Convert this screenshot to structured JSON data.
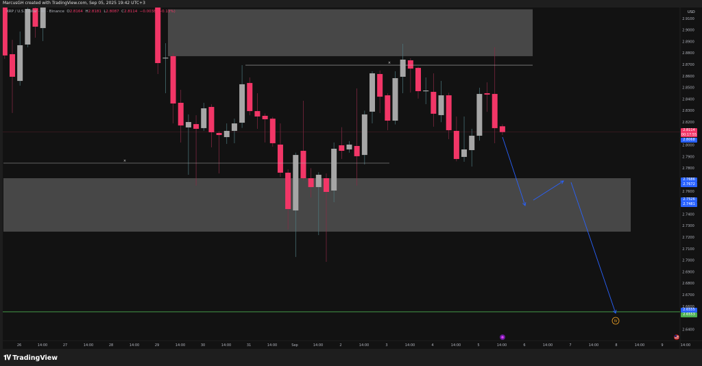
{
  "header": {
    "credit": "MarcusGH created with TradingView.com, Sep 05, 2025 19:42 UTC+3"
  },
  "legend": {
    "symbol": "XRP / U.S. Dollar · 4h · Binance",
    "o_label": "O",
    "o": "2.8164",
    "h_label": "H",
    "h": "2.8181",
    "l_label": "L",
    "l": "2.8087",
    "c_label": "C",
    "c": "2.8114",
    "change": "−0.0038 (−0.13%)"
  },
  "footer": {
    "brand": "TradingView"
  },
  "colors": {
    "up": "#a6a6a6",
    "down": "#f23667",
    "zone": "#474747",
    "green_line": "#4caf50",
    "arrow": "#2962ff",
    "background": "#121212"
  },
  "price_labels": {
    "currency": "USD",
    "last": "2.8114",
    "countdown": "00:17:55",
    "last_color": "#f23667",
    "prev": "2.8068",
    "arrow1_a": "2.7686",
    "arrow1_b": "2.7672",
    "arrow2_a": "2.7526",
    "arrow2_b": "2.7481",
    "target": "2.6555",
    "green_line": "2.6553"
  },
  "icons": {
    "wave_label": "IV",
    "events": "events-icon",
    "flag": "us-flag-icon"
  },
  "chart_data": {
    "type": "candlestick",
    "title": "XRP / U.S. Dollar · 4h · Binance",
    "ylabel": "USD",
    "ylim": [
      2.635,
      2.919
    ],
    "y_ticks": [
      "2.9100",
      "2.9000",
      "2.8900",
      "2.8800",
      "2.8700",
      "2.8600",
      "2.8500",
      "2.8400",
      "2.8300",
      "2.8200",
      "2.8000",
      "2.7900",
      "2.7800",
      "2.7600",
      "2.7400",
      "2.7300",
      "2.7200",
      "2.7100",
      "2.7000",
      "2.6900",
      "2.6800",
      "2.6700",
      "2.6600",
      "2.6400"
    ],
    "x_ticks": [
      "26",
      "14:00",
      "27",
      "14:00",
      "28",
      "14:00",
      "29",
      "14:00",
      "30",
      "14:00",
      "31",
      "14:00",
      "Sep",
      "14:00",
      "2",
      "14:00",
      "3",
      "14:00",
      "4",
      "14:00",
      "5",
      "14:00",
      "6",
      "14:00",
      "7",
      "14:00",
      "8",
      "14:00",
      "9",
      "14:00"
    ],
    "grid": false,
    "candles_columns": [
      "time",
      "open",
      "high",
      "low",
      "close"
    ],
    "candles": [
      [
        "2025-08-25T20:00",
        2.93,
        2.935,
        2.875,
        2.8779
      ],
      [
        "2025-08-26T00:00",
        2.879,
        2.8915,
        2.8279,
        2.8594
      ],
      [
        "2025-08-26T04:00",
        2.8558,
        2.8987,
        2.8517,
        2.8868
      ],
      [
        "2025-08-26T08:00",
        2.8874,
        2.925,
        2.885,
        2.9183
      ],
      [
        "2025-08-26T12:00",
        2.919,
        2.93,
        2.8933,
        2.9029
      ],
      [
        "2025-08-26T16:00",
        2.9017,
        2.93,
        2.8904,
        2.92
      ],
      [
        "2025-08-29T04:00",
        2.93,
        2.94,
        2.8618,
        2.8713
      ],
      [
        "2025-08-29T08:00",
        2.8755,
        2.8886,
        2.8451,
        2.876
      ],
      [
        "2025-08-29T12:00",
        2.8773,
        2.88,
        2.8189,
        2.8362
      ],
      [
        "2025-08-29T16:00",
        2.8368,
        2.8481,
        2.8023,
        2.8171
      ],
      [
        "2025-08-29T20:00",
        2.8154,
        2.8267,
        2.7743,
        2.8201
      ],
      [
        "2025-08-30T00:00",
        2.8183,
        2.826,
        2.7648,
        2.8142
      ],
      [
        "2025-08-30T04:00",
        2.8148,
        2.8368,
        2.8124,
        2.832
      ],
      [
        "2025-08-30T08:00",
        2.8332,
        2.8355,
        2.7981,
        2.8112
      ],
      [
        "2025-08-30T12:00",
        2.8106,
        2.812,
        2.7755,
        2.8088
      ],
      [
        "2025-08-30T16:00",
        2.807,
        2.8189,
        2.8011,
        2.8124
      ],
      [
        "2025-08-30T20:00",
        2.8124,
        2.823,
        2.8017,
        2.8189
      ],
      [
        "2025-08-31T00:00",
        2.8195,
        2.8695,
        2.815,
        2.8529
      ],
      [
        "2025-08-31T04:00",
        2.854,
        2.8588,
        2.826,
        2.8296
      ],
      [
        "2025-08-31T08:00",
        2.8296,
        2.8451,
        2.8142,
        2.8249
      ],
      [
        "2025-08-31T12:00",
        2.8255,
        2.8275,
        2.8023,
        2.8225
      ],
      [
        "2025-08-31T16:00",
        2.823,
        2.8245,
        2.7987,
        2.8017
      ],
      [
        "2025-08-31T20:00",
        2.8005,
        2.8189,
        2.7725,
        2.7761
      ],
      [
        "2025-09-01T00:00",
        2.7761,
        2.779,
        2.7267,
        2.7445
      ],
      [
        "2025-09-01T04:00",
        2.7433,
        2.7935,
        2.7029,
        2.7915
      ],
      [
        "2025-09-01T08:00",
        2.7951,
        2.8386,
        2.7695,
        2.7713
      ],
      [
        "2025-09-01T12:00",
        2.7713,
        2.78,
        2.7546,
        2.7636
      ],
      [
        "2025-09-01T16:00",
        2.7636,
        2.7765,
        2.7219,
        2.7743
      ],
      [
        "2025-09-01T20:00",
        2.7713,
        2.7755,
        2.6987,
        2.7594
      ],
      [
        "2025-09-02T00:00",
        2.7606,
        2.8023,
        2.7505,
        2.7969
      ],
      [
        "2025-09-02T04:00",
        2.7999,
        2.8156,
        2.788,
        2.7951
      ],
      [
        "2025-09-02T08:00",
        2.7963,
        2.8035,
        2.7935,
        2.8005
      ],
      [
        "2025-09-02T12:00",
        2.7993,
        2.8493,
        2.7648,
        2.7904
      ],
      [
        "2025-09-02T16:00",
        2.7915,
        2.83,
        2.7832,
        2.8267
      ],
      [
        "2025-09-02T20:00",
        2.8291,
        2.8642,
        2.8189,
        2.8624
      ],
      [
        "2025-09-03T00:00",
        2.8618,
        2.8648,
        2.8279,
        2.8421
      ],
      [
        "2025-09-03T04:00",
        2.8433,
        2.845,
        2.813,
        2.8213
      ],
      [
        "2025-09-03T08:00",
        2.8213,
        2.8642,
        2.818,
        2.8582
      ],
      [
        "2025-09-03T12:00",
        2.8594,
        2.888,
        2.8451,
        2.8743
      ],
      [
        "2025-09-03T16:00",
        2.8737,
        2.8755,
        2.8457,
        2.8665
      ],
      [
        "2025-09-03T20:00",
        2.8671,
        2.868,
        2.8404,
        2.8469
      ],
      [
        "2025-09-04T00:00",
        2.8469,
        2.8588,
        2.8356,
        2.8475
      ],
      [
        "2025-09-04T04:00",
        2.8463,
        2.8624,
        2.816,
        2.8273
      ],
      [
        "2025-09-04T08:00",
        2.8261,
        2.8558,
        2.82,
        2.8433
      ],
      [
        "2025-09-04T12:00",
        2.8433,
        2.8455,
        2.8052,
        2.813
      ],
      [
        "2025-09-04T16:00",
        2.8124,
        2.8249,
        2.786,
        2.788
      ],
      [
        "2025-09-04T20:00",
        2.7898,
        2.8249,
        2.7856,
        2.7963
      ],
      [
        "2025-09-05T00:00",
        2.7957,
        2.8142,
        2.7814,
        2.8082
      ],
      [
        "2025-09-05T04:00",
        2.8082,
        2.8499,
        2.804,
        2.8445
      ],
      [
        "2025-09-05T08:00",
        2.8451,
        2.8546,
        2.829,
        2.8439
      ],
      [
        "2025-09-05T12:00",
        2.8445,
        2.885,
        2.8017,
        2.8148
      ],
      [
        "2025-09-05T16:00",
        2.8164,
        2.8181,
        2.8087,
        2.8114
      ]
    ],
    "drawings": {
      "supply_zone": {
        "top": 2.918,
        "bottom": 2.8773
      },
      "demand_zone": {
        "top": 2.7713,
        "bottom": 2.7249
      },
      "upper_level": 2.8695,
      "lower_level": 2.7844,
      "target_level": 2.6553,
      "last_price": 2.8114
    }
  }
}
